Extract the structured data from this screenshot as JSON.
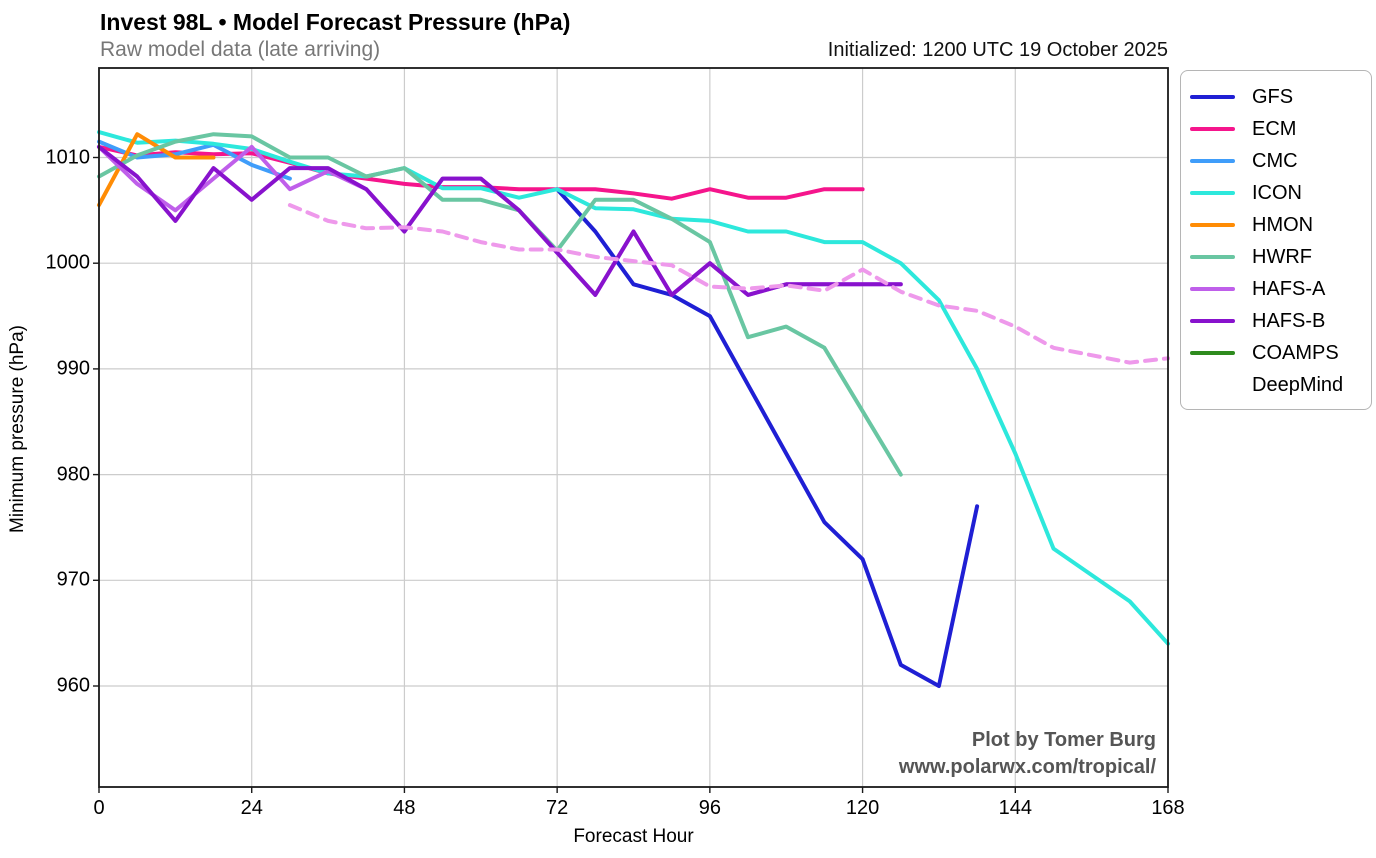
{
  "header": {
    "title": "Invest 98L • Model Forecast Pressure (hPa)",
    "subtitle": "Raw model data (late arriving)",
    "initialized": "Initialized: 1200 UTC 19 October 2025"
  },
  "watermark": {
    "line1": "Plot by Tomer Burg",
    "line2": "www.polarwx.com/tropical/"
  },
  "axes": {
    "xlabel": "Forecast Hour",
    "ylabel": "Minimum pressure (hPa)",
    "xticks": [
      0,
      24,
      48,
      72,
      96,
      120,
      144,
      168
    ],
    "yticks": [
      960,
      970,
      980,
      990,
      1000,
      1010
    ]
  },
  "style": {
    "grid_color": "#cccccc",
    "axis_color": "#1a1a1a",
    "watermark_color": "#555555",
    "subtitle_color": "#777777"
  },
  "chart_data": {
    "type": "line",
    "title": "Invest 98L • Model Forecast Pressure (hPa)",
    "subtitle": "Raw model data (late arriving)",
    "annotation": "Initialized: 1200 UTC 19 October 2025",
    "xlabel": "Forecast Hour",
    "ylabel": "Minimum pressure (hPa)",
    "xlim": [
      0,
      168
    ],
    "ylim": [
      950,
      1018.5
    ],
    "grid": true,
    "legend_position": "right",
    "x_unit": "forecast hour",
    "series": [
      {
        "name": "GFS",
        "color": "#1f1fd4",
        "dashed": false,
        "points": [
          [
            72,
            1007
          ],
          [
            78,
            1003
          ],
          [
            84,
            998
          ],
          [
            90,
            997
          ],
          [
            96,
            995
          ],
          [
            102,
            988.5
          ],
          [
            108,
            982
          ],
          [
            114,
            975.5
          ],
          [
            120,
            972
          ],
          [
            126,
            962
          ],
          [
            132,
            960
          ],
          [
            138,
            977
          ]
        ]
      },
      {
        "name": "ECM",
        "color": "#f5158c",
        "dashed": false,
        "points": [
          [
            0,
            1011
          ],
          [
            6,
            1010.2
          ],
          [
            12,
            1010.5
          ],
          [
            18,
            1010.3
          ],
          [
            24,
            1010.4
          ],
          [
            30,
            1009.5
          ],
          [
            36,
            1008.5
          ],
          [
            42,
            1008
          ],
          [
            48,
            1007.5
          ],
          [
            54,
            1007.2
          ],
          [
            60,
            1007.2
          ],
          [
            66,
            1007
          ],
          [
            72,
            1007
          ],
          [
            78,
            1007
          ],
          [
            84,
            1006.6
          ],
          [
            90,
            1006.1
          ],
          [
            96,
            1007
          ],
          [
            102,
            1006.2
          ],
          [
            108,
            1006.2
          ],
          [
            114,
            1007
          ],
          [
            120,
            1007
          ]
        ]
      },
      {
        "name": "CMC",
        "color": "#3f9dfa",
        "dashed": false,
        "points": [
          [
            0,
            1011.5
          ],
          [
            6,
            1010
          ],
          [
            12,
            1010.3
          ],
          [
            18,
            1011.2
          ],
          [
            24,
            1009.3
          ],
          [
            30,
            1008
          ]
        ]
      },
      {
        "name": "ICON",
        "color": "#2de8dc",
        "dashed": false,
        "points": [
          [
            0,
            1012.4
          ],
          [
            6,
            1011.4
          ],
          [
            12,
            1011.6
          ],
          [
            18,
            1011.3
          ],
          [
            24,
            1010.8
          ],
          [
            30,
            1009.6
          ],
          [
            36,
            1008.5
          ],
          [
            42,
            1008.2
          ],
          [
            48,
            1009
          ],
          [
            54,
            1007.1
          ],
          [
            60,
            1007.1
          ],
          [
            66,
            1006.2
          ],
          [
            72,
            1007
          ],
          [
            78,
            1005.2
          ],
          [
            84,
            1005.1
          ],
          [
            90,
            1004.2
          ],
          [
            96,
            1004
          ],
          [
            102,
            1003
          ],
          [
            108,
            1003
          ],
          [
            114,
            1002
          ],
          [
            120,
            1002
          ],
          [
            126,
            1000
          ],
          [
            132,
            996.5
          ],
          [
            138,
            990
          ],
          [
            144,
            982
          ],
          [
            150,
            973
          ],
          [
            156,
            970.5
          ],
          [
            162,
            968
          ],
          [
            168,
            964
          ]
        ]
      },
      {
        "name": "HMON",
        "color": "#ff8c05",
        "dashed": false,
        "points": [
          [
            0,
            1005.5
          ],
          [
            6,
            1012.2
          ],
          [
            12,
            1010
          ],
          [
            18,
            1010
          ]
        ]
      },
      {
        "name": "HWRF",
        "color": "#69c6a2",
        "dashed": false,
        "points": [
          [
            0,
            1008.2
          ],
          [
            6,
            1010.2
          ],
          [
            12,
            1011.5
          ],
          [
            18,
            1012.2
          ],
          [
            24,
            1012
          ],
          [
            30,
            1010
          ],
          [
            36,
            1010
          ],
          [
            42,
            1008.2
          ],
          [
            48,
            1009
          ],
          [
            54,
            1006
          ],
          [
            60,
            1006
          ],
          [
            66,
            1005
          ],
          [
            72,
            1001.2
          ],
          [
            78,
            1006
          ],
          [
            84,
            1006
          ],
          [
            90,
            1004.2
          ],
          [
            96,
            1002
          ],
          [
            102,
            993
          ],
          [
            108,
            994
          ],
          [
            114,
            992
          ],
          [
            120,
            986
          ],
          [
            126,
            980
          ]
        ]
      },
      {
        "name": "HAFS-A",
        "color": "#bf5fea",
        "dashed": false,
        "points": [
          [
            0,
            1011
          ],
          [
            6,
            1007.5
          ],
          [
            12,
            1005
          ],
          [
            18,
            1008
          ],
          [
            24,
            1011
          ],
          [
            30,
            1007
          ],
          [
            36,
            1008.7
          ],
          [
            42,
            1007
          ],
          [
            48,
            1003
          ],
          [
            54,
            1008
          ],
          [
            60,
            1008
          ],
          [
            66,
            1005
          ],
          [
            72,
            1001
          ],
          [
            78,
            997
          ],
          [
            84,
            1003
          ],
          [
            90,
            997
          ],
          [
            96,
            1000
          ],
          [
            102,
            997
          ],
          [
            108,
            998
          ],
          [
            114,
            998
          ],
          [
            120,
            998
          ],
          [
            126,
            998
          ]
        ]
      },
      {
        "name": "HAFS-B",
        "color": "#8812cd",
        "dashed": false,
        "points": [
          [
            0,
            1011
          ],
          [
            6,
            1008.2
          ],
          [
            12,
            1004
          ],
          [
            18,
            1009
          ],
          [
            24,
            1006
          ],
          [
            30,
            1009
          ],
          [
            36,
            1009
          ],
          [
            42,
            1007
          ],
          [
            48,
            1003
          ],
          [
            54,
            1008
          ],
          [
            60,
            1008
          ],
          [
            66,
            1005
          ],
          [
            72,
            1001
          ],
          [
            78,
            997
          ],
          [
            84,
            1003
          ],
          [
            90,
            997
          ],
          [
            96,
            1000
          ],
          [
            102,
            997
          ],
          [
            108,
            998
          ],
          [
            114,
            998
          ],
          [
            120,
            998
          ],
          [
            126,
            998
          ]
        ]
      },
      {
        "name": "COAMPS",
        "color": "#2e8b1e",
        "dashed": false,
        "points": []
      },
      {
        "name": "DeepMind",
        "color": "#ee99eb",
        "dashed": true,
        "points": [
          [
            30,
            1005.5
          ],
          [
            36,
            1004
          ],
          [
            42,
            1003.3
          ],
          [
            48,
            1003.4
          ],
          [
            54,
            1003
          ],
          [
            60,
            1002
          ],
          [
            66,
            1001.3
          ],
          [
            72,
            1001.3
          ],
          [
            78,
            1000.6
          ],
          [
            84,
            1000.2
          ],
          [
            90,
            999.8
          ],
          [
            96,
            997.8
          ],
          [
            102,
            997.6
          ],
          [
            108,
            997.9
          ],
          [
            114,
            997.4
          ],
          [
            120,
            999.4
          ],
          [
            126,
            997.3
          ],
          [
            132,
            996
          ],
          [
            138,
            995.5
          ],
          [
            144,
            994
          ],
          [
            150,
            992
          ],
          [
            156,
            991.3
          ],
          [
            162,
            990.6
          ],
          [
            168,
            991
          ]
        ]
      }
    ]
  }
}
